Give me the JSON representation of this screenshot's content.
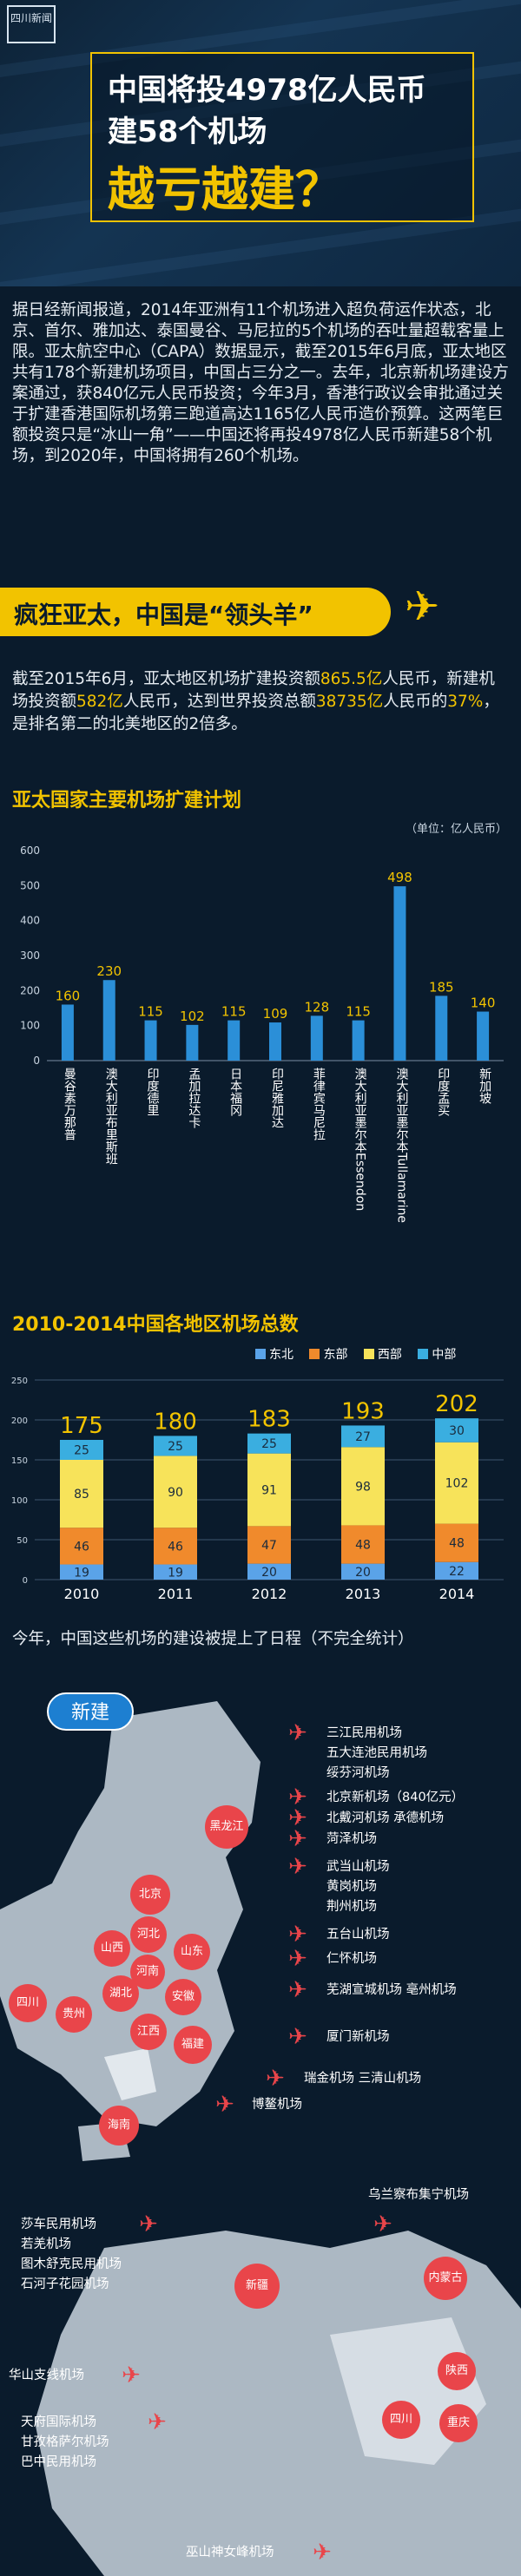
{
  "header": {
    "logo_text": "四川新闻",
    "title_line1": "中国将投4978亿人民币",
    "title_line2": "建58个机场",
    "title_line3": "越亏越建？"
  },
  "intro": "据日经新闻报道，2014年亚洲有11个机场进入超负荷运作状态，北京、首尔、雅加达、泰国曼谷、马尼拉的5个机场的吞吐量超载客量上限。亚太航空中心（CAPA）数据显示，截至2015年6月底，亚太地区共有178个新建机场项目，中国占三分之一。去年，北京新机场建设方案通过，获840亿元人民币投资；今年3月，香港行政议会审批通过关于扩建香港国际机场第三跑道高达1165亿人民币造价预算。这两笔巨额投资只是“冰山一角”——中国还将再投4978亿人民币新建58个机场，到2020年，中国将拥有260个机场。",
  "section": {
    "title": "疯狂亚太，中国是“领头羊”",
    "plane_icon": "airplane-icon"
  },
  "stat": {
    "p1": "截至2015年6月，亚太地区机场扩建投资额",
    "h1": "865.5亿",
    "p2": "人民币，新建机场投资额",
    "h2": "582亿",
    "p3": "人民币，达到世界投资总额",
    "h3": "38735亿",
    "p4": "人民币的",
    "h4": "37%",
    "p5": "，是排名第二的北美地区的2倍多。"
  },
  "colors": {
    "accent": "#f2c300",
    "bar_blue": "#2b8fd8",
    "east": "#5aa3e8",
    "north": "#f08a2c",
    "west": "#f7e35a",
    "central": "#3aaee0",
    "marker": "#e9454a"
  },
  "chart_data": [
    {
      "type": "bar",
      "title": "亚太国家主要机场扩建计划",
      "unit": "（单位：亿人民币）",
      "categories": [
        "曼谷素万那普",
        "澳大利亚布里斯班",
        "印度德里",
        "孟加拉达卡",
        "日本福冈",
        "印尼雅加达",
        "菲律宾马尼拉",
        "澳大利亚墨尔本Essendon",
        "澳大利亚墨尔本Tullamarine",
        "印度孟买",
        "新加坡"
      ],
      "values": [
        160,
        230,
        115,
        102,
        115,
        109,
        128,
        115,
        498,
        185,
        140
      ],
      "ylim": [
        0,
        600
      ],
      "yticks": [
        0,
        100,
        200,
        300,
        400,
        500,
        600
      ],
      "grid": false
    },
    {
      "type": "bar",
      "title": "2010-2014中国各地区机场总数",
      "categories": [
        "2010",
        "2011",
        "2012",
        "2013",
        "2014"
      ],
      "totals": [
        175,
        180,
        183,
        193,
        202
      ],
      "series": [
        {
          "name": "东北",
          "values": [
            19,
            19,
            20,
            20,
            22
          ]
        },
        {
          "name": "东部",
          "values": [
            46,
            46,
            47,
            48,
            48
          ]
        },
        {
          "name": "西部",
          "values": [
            85,
            90,
            91,
            98,
            102
          ]
        },
        {
          "name": "中部",
          "values": [
            25,
            25,
            25,
            27,
            30
          ]
        }
      ],
      "legend_position": "top-right",
      "ylim": [
        0,
        250
      ],
      "yticks": [
        0,
        50,
        100,
        150,
        200,
        250
      ],
      "grid": true
    }
  ],
  "schedule_text": "今年，中国这些机场的建设被提上了日程（不完全统计）",
  "map": {
    "new_label": "新建",
    "provinces_top": [
      "黑龙江",
      "北京",
      "河北",
      "山西",
      "山东",
      "河南",
      "湖北",
      "安徽",
      "四川",
      "贵州",
      "江西",
      "福建",
      "海南"
    ],
    "provinces_bottom": [
      "新疆",
      "内蒙古",
      "陕西",
      "四川",
      "重庆"
    ],
    "airport_groups_top": [
      [
        "三江民用机场",
        "五大连池民用机场",
        "绥芬河机场"
      ],
      [
        "北京新机场（840亿元）"
      ],
      [
        "北戴河机场 承德机场"
      ],
      [
        "菏泽机场"
      ],
      [
        "武当山机场",
        "黄岗机场",
        "荆州机场"
      ],
      [
        "五台山机场"
      ],
      [
        "仁怀机场"
      ],
      [
        "芜湖宣城机场 亳州机场"
      ],
      [
        "厦门新机场"
      ],
      [
        "瑞金机场  三清山机场"
      ],
      [
        "博鳌机场"
      ]
    ],
    "airport_groups_bottom": [
      [
        "乌兰察布集宁机场"
      ],
      [
        "莎车民用机场",
        "若羌机场",
        "图木舒克民用机场",
        "石河子花园机场"
      ],
      [
        "华山支线机场"
      ],
      [
        "天府国际机场",
        "甘孜格萨尔机场",
        "巴中民用机场"
      ],
      [
        "巫山神女峰机场"
      ]
    ]
  }
}
